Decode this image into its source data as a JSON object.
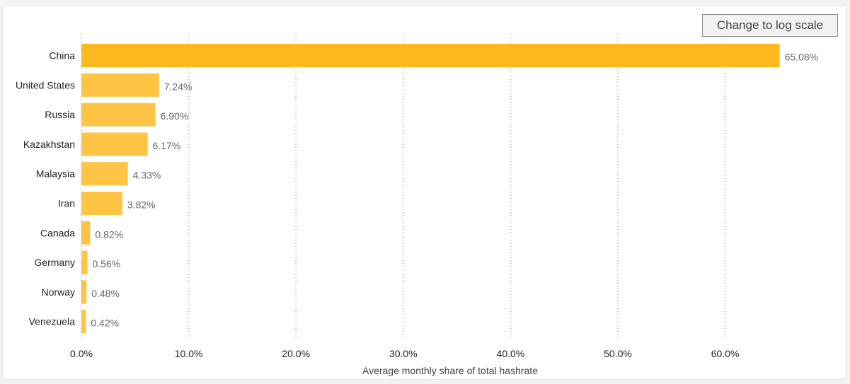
{
  "controls": {
    "log_scale_label": "Change to log scale"
  },
  "chart_data": {
    "type": "bar",
    "orientation": "horizontal",
    "categories": [
      "China",
      "United States",
      "Russia",
      "Kazakhstan",
      "Malaysia",
      "Iran",
      "Canada",
      "Germany",
      "Norway",
      "Venezuela"
    ],
    "values": [
      65.08,
      7.24,
      6.9,
      6.17,
      4.33,
      3.82,
      0.82,
      0.56,
      0.48,
      0.42
    ],
    "value_labels": [
      "65.08%",
      "7.24%",
      "6.90%",
      "6.17%",
      "4.33%",
      "3.82%",
      "0.82%",
      "0.56%",
      "0.48%",
      "0.42%"
    ],
    "xlabel": "Average monthly share of total hashrate",
    "xlim": [
      0,
      65
    ],
    "xticks": [
      0,
      10,
      20,
      30,
      40,
      50,
      60
    ],
    "xtick_labels": [
      "0.0%",
      "10.0%",
      "20.0%",
      "30.0%",
      "40.0%",
      "50.0%",
      "60.0%"
    ],
    "grid": true,
    "colors": {
      "top_bar": "#ffb81e",
      "bars": "#ffc444"
    }
  }
}
